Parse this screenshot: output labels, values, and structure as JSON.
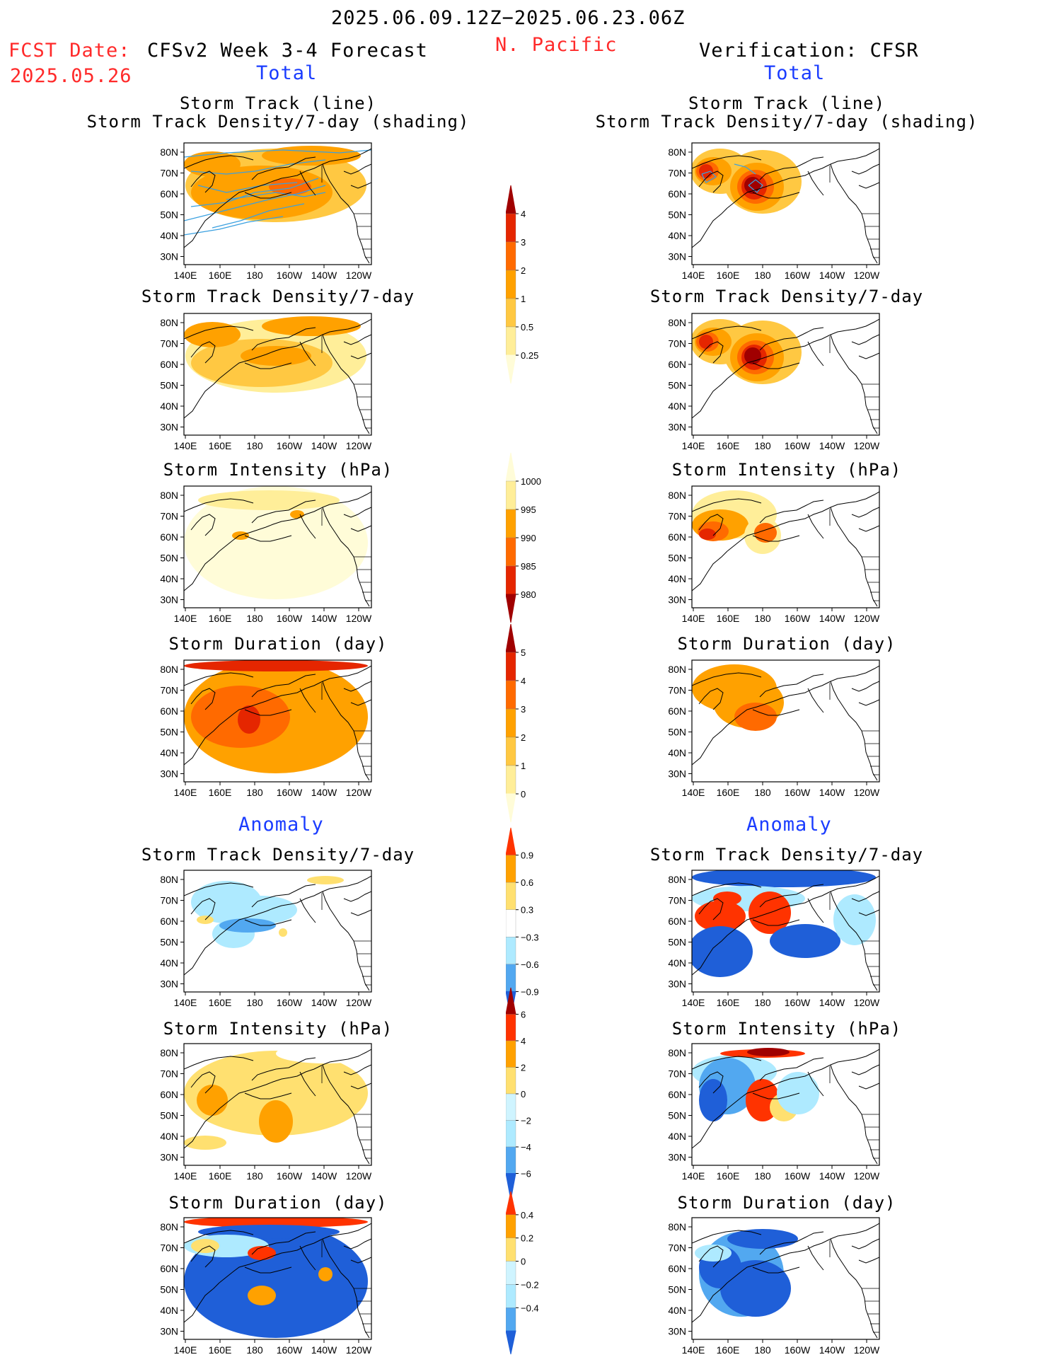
{
  "header": {
    "date_range": "2025.06.09.12Z−2025.06.23.06Z",
    "fcst_label": "FCST Date:",
    "fcst_date": "2025.05.26",
    "model": "CFSv2 Week 3-4 Forecast",
    "region": "N. Pacific",
    "verification": "Verification: CFSR",
    "left_section_total": "Total",
    "right_section_total": "Total",
    "left_section_anomaly": "Anomaly",
    "right_section_anomaly": "Anomaly"
  },
  "titles": {
    "track_line": "Storm Track (line)",
    "track_shading": "Storm Track Density/7-day (shading)",
    "density": "Storm Track Density/7-day",
    "intensity": "Storm Intensity (hPa)",
    "duration": "Storm Duration (day)"
  },
  "axes": {
    "lat_ticks": [
      "80N",
      "70N",
      "60N",
      "50N",
      "40N",
      "30N"
    ],
    "lon_ticks": [
      "140E",
      "160E",
      "180",
      "160W",
      "140W",
      "120W"
    ]
  },
  "colorbars": {
    "density_total": {
      "labels": [
        "4",
        "3",
        "2",
        "1",
        "0.5",
        "0.25"
      ],
      "colors": [
        "#a00000",
        "#e52600",
        "#ff6a00",
        "#ffa100",
        "#ffc842",
        "#ffee99",
        "#fffcd8"
      ]
    },
    "intensity_total": {
      "labels": [
        "1000",
        "995",
        "990",
        "985",
        "980"
      ],
      "colors": [
        "#fffcd8",
        "#ffee99",
        "#ffa100",
        "#ff6a00",
        "#e52600",
        "#a00000"
      ]
    },
    "duration_total": {
      "labels": [
        "5",
        "4",
        "3",
        "2",
        "1",
        "0"
      ],
      "colors": [
        "#a00000",
        "#e52600",
        "#ff6a00",
        "#ffa100",
        "#ffc842",
        "#ffee99",
        "#fffcd8"
      ]
    },
    "density_anom": {
      "labels": [
        "0.9",
        "0.6",
        "0.3",
        "−0.3",
        "−0.6",
        "−0.9"
      ],
      "colors": [
        "#ff3300",
        "#ffa100",
        "#ffe070",
        "#ffffff",
        "#aeeaff",
        "#52a8f0",
        "#1f5fd8"
      ]
    },
    "intensity_anom": {
      "labels": [
        "6",
        "4",
        "2",
        "0",
        "−2",
        "−4",
        "−6"
      ],
      "colors": [
        "#a00000",
        "#ff3300",
        "#ffa100",
        "#ffe070",
        "#cff4ff",
        "#aeeaff",
        "#52a8f0",
        "#1f5fd8"
      ]
    },
    "duration_anom": {
      "labels": [
        "0.4",
        "0.2",
        "0",
        "−0.2",
        "−0.4"
      ],
      "colors": [
        "#ff3300",
        "#ffa100",
        "#ffe070",
        "#cff4ff",
        "#aeeaff",
        "#52a8f0",
        "#1f5fd8"
      ]
    }
  },
  "chart_data": [
    {
      "type": "heatmap",
      "panel": "forecast total storm track with density shading",
      "colorbar": "density_total"
    },
    {
      "type": "heatmap",
      "panel": "verification total storm track with density shading",
      "colorbar": "density_total"
    },
    {
      "type": "heatmap",
      "panel": "forecast total storm track density",
      "colorbar": "density_total"
    },
    {
      "type": "heatmap",
      "panel": "verification total storm track density",
      "colorbar": "density_total"
    },
    {
      "type": "heatmap",
      "panel": "forecast total storm intensity",
      "colorbar": "intensity_total"
    },
    {
      "type": "heatmap",
      "panel": "verification total storm intensity",
      "colorbar": "intensity_total"
    },
    {
      "type": "heatmap",
      "panel": "forecast total storm duration",
      "colorbar": "duration_total"
    },
    {
      "type": "heatmap",
      "panel": "verification total storm duration",
      "colorbar": "duration_total"
    },
    {
      "type": "heatmap",
      "panel": "forecast anomaly storm track density",
      "colorbar": "density_anom"
    },
    {
      "type": "heatmap",
      "panel": "verification anomaly storm track density",
      "colorbar": "density_anom"
    },
    {
      "type": "heatmap",
      "panel": "forecast anomaly storm intensity",
      "colorbar": "intensity_anom"
    },
    {
      "type": "heatmap",
      "panel": "verification anomaly storm intensity",
      "colorbar": "intensity_anom"
    },
    {
      "type": "heatmap",
      "panel": "forecast anomaly storm duration",
      "colorbar": "duration_anom"
    },
    {
      "type": "heatmap",
      "panel": "verification anomaly storm duration",
      "colorbar": "duration_anom"
    }
  ]
}
